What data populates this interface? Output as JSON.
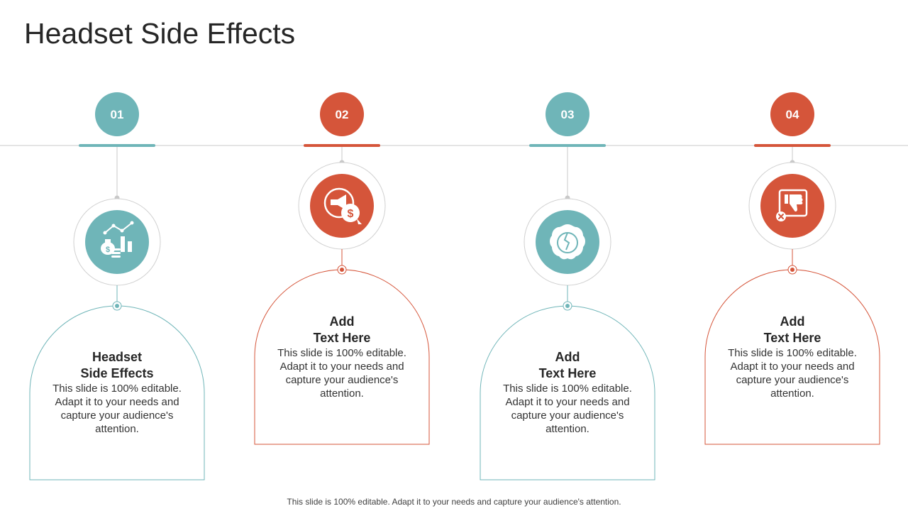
{
  "slide": {
    "title": "Headset Side Effects",
    "footer": "This slide is 100% editable. Adapt it to your needs and capture your audience's attention."
  },
  "colors": {
    "teal": "#6fb5b8",
    "orange": "#d5553a",
    "line": "#c8c8c8"
  },
  "steps": [
    {
      "number": "01",
      "color": "teal",
      "icon": "money-bag-chart-icon",
      "heading_line1": "Headset",
      "heading_line2": "Side Effects",
      "body": "This slide is 100% editable. Adapt it to your needs and capture your audience's attention."
    },
    {
      "number": "02",
      "color": "orange",
      "icon": "megaphone-dollar-icon",
      "heading_line1": "Add",
      "heading_line2": "Text Here",
      "body": "This slide is 100% editable. Adapt it to your needs and capture your audience's attention."
    },
    {
      "number": "03",
      "color": "teal",
      "icon": "brain-icon",
      "heading_line1": "Add",
      "heading_line2": "Text Here",
      "body": "This slide is 100% editable. Adapt it to your needs and capture your audience's attention."
    },
    {
      "number": "04",
      "color": "orange",
      "icon": "thumbs-down-icon",
      "heading_line1": "Add",
      "heading_line2": "Text Here",
      "body": "This slide is 100% editable. Adapt it to your needs and capture your audience's attention."
    }
  ]
}
